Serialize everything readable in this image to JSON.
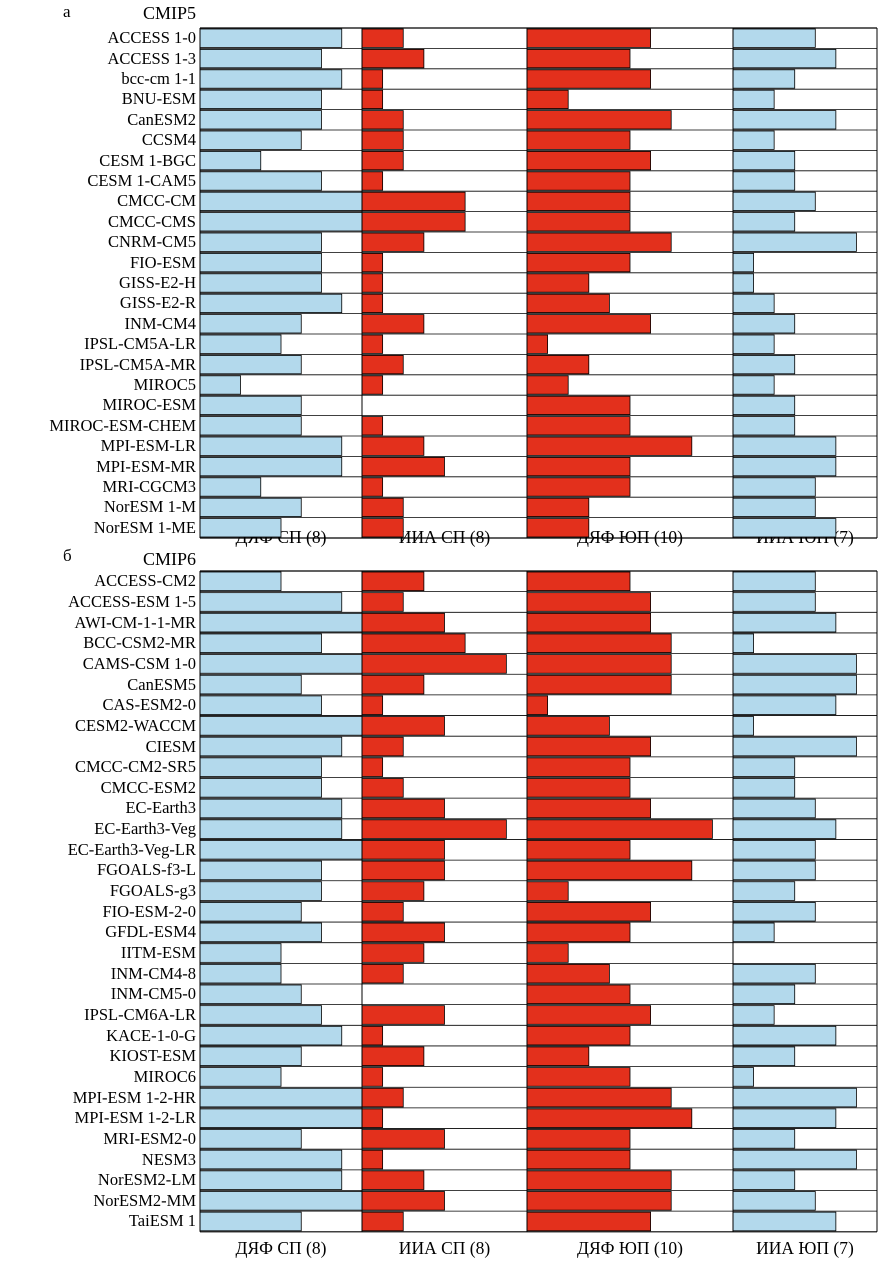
{
  "colors": {
    "blue": "#b3d9ec",
    "red": "#e3301c",
    "grid": "#000000"
  },
  "chart_data": [
    {
      "type": "bar",
      "panel_letter": "а",
      "title": "CMIP5",
      "columns": [
        {
          "label": "ДЯФ СП (8)",
          "max": 8,
          "color": "blue"
        },
        {
          "label": "ИИА СП (8)",
          "max": 8,
          "color": "red"
        },
        {
          "label": "ДЯФ ЮП (10)",
          "max": 10,
          "color": "red"
        },
        {
          "label": "ИИА ЮП (7)",
          "max": 7,
          "color": "blue"
        }
      ],
      "models": [
        "ACCESS 1-0",
        "ACCESS 1-3",
        "bcc-cm 1-1",
        "BNU-ESM",
        "CanESM2",
        "CCSM4",
        "CESM 1-BGC",
        "CESM 1-CAM5",
        "CMCC-CM",
        "CMCC-CMS",
        "CNRM-CM5",
        "FIO-ESM",
        "GISS-E2-H",
        "GISS-E2-R",
        "INM-CM4",
        "IPSL-CM5A-LR",
        "IPSL-CM5A-MR",
        "MIROC5",
        "MIROC-ESM",
        "MIROC-ESM-CHEM",
        "MPI-ESM-LR",
        "MPI-ESM-MR",
        "MRI-CGCM3",
        "NorESM 1-M",
        "NorESM 1-ME"
      ],
      "values": [
        [
          7,
          2,
          6,
          4
        ],
        [
          6,
          3,
          5,
          5
        ],
        [
          7,
          1,
          6,
          3
        ],
        [
          6,
          1,
          2,
          2
        ],
        [
          6,
          2,
          7,
          5
        ],
        [
          5,
          2,
          5,
          2
        ],
        [
          3,
          2,
          6,
          3
        ],
        [
          6,
          1,
          5,
          3
        ],
        [
          8,
          5,
          5,
          4
        ],
        [
          8,
          5,
          5,
          3
        ],
        [
          6,
          3,
          7,
          6
        ],
        [
          6,
          1,
          5,
          1
        ],
        [
          6,
          1,
          3,
          1
        ],
        [
          7,
          1,
          4,
          2
        ],
        [
          5,
          3,
          6,
          3
        ],
        [
          4,
          1,
          1,
          2
        ],
        [
          5,
          2,
          3,
          3
        ],
        [
          2,
          1,
          2,
          2
        ],
        [
          5,
          0,
          5,
          3
        ],
        [
          5,
          1,
          5,
          3
        ],
        [
          7,
          3,
          8,
          5
        ],
        [
          7,
          4,
          5,
          5
        ],
        [
          3,
          1,
          5,
          4
        ],
        [
          5,
          2,
          3,
          4
        ],
        [
          4,
          2,
          3,
          5
        ]
      ]
    },
    {
      "type": "bar",
      "panel_letter": "б",
      "title": "CMIP6",
      "columns": [
        {
          "label": "ДЯФ СП (8)",
          "max": 8,
          "color": "blue"
        },
        {
          "label": "ИИА СП (8)",
          "max": 8,
          "color": "red"
        },
        {
          "label": "ДЯФ ЮП (10)",
          "max": 10,
          "color": "red"
        },
        {
          "label": "ИИА ЮП (7)",
          "max": 7,
          "color": "blue"
        }
      ],
      "models": [
        "ACCESS-CM2",
        "ACCESS-ESM 1-5",
        "AWI-CM-1-1-MR",
        "BCC-CSM2-MR",
        "CAMS-CSM 1-0",
        "CanESM5",
        "CAS-ESM2-0",
        "CESM2-WACCM",
        "CIESM",
        "CMCC-CM2-SR5",
        "CMCC-ESM2",
        "EC-Earth3",
        "EC-Earth3-Veg",
        "EC-Earth3-Veg-LR",
        "FGOALS-f3-L",
        "FGOALS-g3",
        "FIO-ESM-2-0",
        "GFDL-ESM4",
        "IITM-ESM",
        "INM-CM4-8",
        "INM-CM5-0",
        "IPSL-CM6A-LR",
        "KACE-1-0-G",
        "KIOST-ESM",
        "MIROC6",
        "MPI-ESM 1-2-HR",
        "MPI-ESM 1-2-LR",
        "MRI-ESM2-0",
        "NESM3",
        "NorESM2-LM",
        "NorESM2-MM",
        "TaiESM 1"
      ],
      "values": [
        [
          4,
          3,
          5,
          4
        ],
        [
          7,
          2,
          6,
          4
        ],
        [
          8,
          4,
          6,
          5
        ],
        [
          6,
          5,
          7,
          1
        ],
        [
          8,
          7,
          7,
          6
        ],
        [
          5,
          3,
          7,
          6
        ],
        [
          6,
          1,
          1,
          5
        ],
        [
          8,
          4,
          4,
          1
        ],
        [
          7,
          2,
          6,
          6
        ],
        [
          6,
          1,
          5,
          3
        ],
        [
          6,
          2,
          5,
          3
        ],
        [
          7,
          4,
          6,
          4
        ],
        [
          7,
          7,
          9,
          5
        ],
        [
          8,
          4,
          5,
          4
        ],
        [
          6,
          4,
          8,
          4
        ],
        [
          6,
          3,
          2,
          3
        ],
        [
          5,
          2,
          6,
          4
        ],
        [
          6,
          4,
          5,
          2
        ],
        [
          4,
          3,
          2,
          0
        ],
        [
          4,
          2,
          4,
          4
        ],
        [
          5,
          0,
          5,
          3
        ],
        [
          6,
          4,
          6,
          2
        ],
        [
          7,
          1,
          5,
          5
        ],
        [
          5,
          3,
          3,
          3
        ],
        [
          4,
          1,
          5,
          1
        ],
        [
          8,
          2,
          7,
          6
        ],
        [
          8,
          1,
          8,
          5
        ],
        [
          5,
          4,
          5,
          3
        ],
        [
          7,
          1,
          5,
          6
        ],
        [
          7,
          3,
          7,
          3
        ],
        [
          8,
          4,
          7,
          4
        ],
        [
          5,
          2,
          6,
          5
        ]
      ]
    }
  ]
}
